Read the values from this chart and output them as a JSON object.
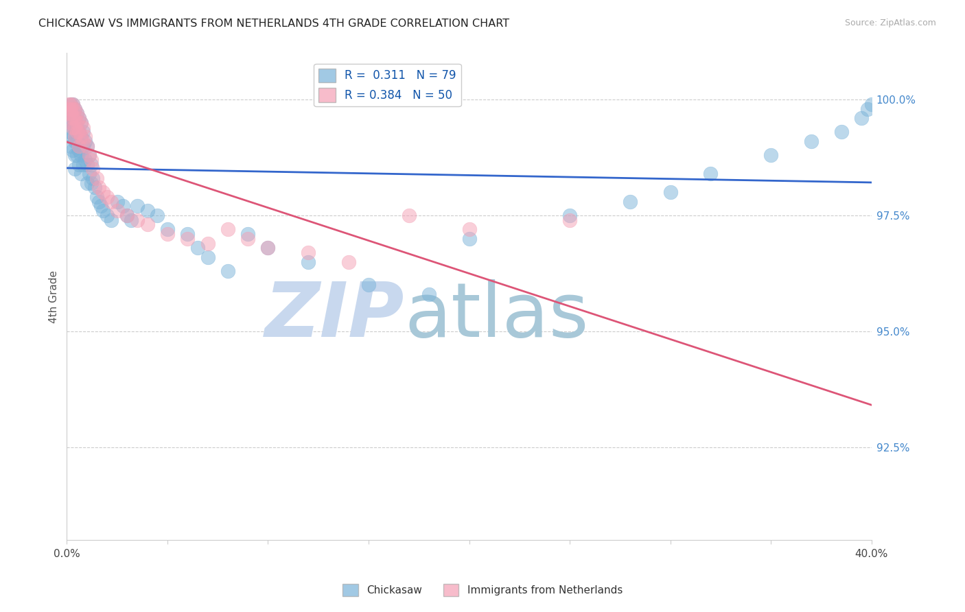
{
  "title": "CHICKASAW VS IMMIGRANTS FROM NETHERLANDS 4TH GRADE CORRELATION CHART",
  "source": "Source: ZipAtlas.com",
  "ylabel": "4th Grade",
  "ytick_labels": [
    "100.0%",
    "97.5%",
    "95.0%",
    "92.5%"
  ],
  "ytick_values": [
    1.0,
    0.975,
    0.95,
    0.925
  ],
  "xlim": [
    0.0,
    0.4
  ],
  "ylim": [
    0.905,
    1.01
  ],
  "blue_R": 0.311,
  "blue_N": 79,
  "pink_R": 0.384,
  "pink_N": 50,
  "blue_color": "#7ab3d9",
  "pink_color": "#f4a0b5",
  "blue_line_color": "#3366cc",
  "pink_line_color": "#dd5577",
  "legend_label_blue": "Chickasaw",
  "legend_label_pink": "Immigrants from Netherlands",
  "watermark_zip": "ZIP",
  "watermark_atlas": "atlas",
  "watermark_color_zip": "#c8d8ee",
  "watermark_color_atlas": "#a8c8d8",
  "blue_x": [
    0.001,
    0.001,
    0.001,
    0.002,
    0.002,
    0.002,
    0.002,
    0.002,
    0.003,
    0.003,
    0.003,
    0.003,
    0.003,
    0.004,
    0.004,
    0.004,
    0.004,
    0.004,
    0.004,
    0.005,
    0.005,
    0.005,
    0.005,
    0.006,
    0.006,
    0.006,
    0.006,
    0.007,
    0.007,
    0.007,
    0.007,
    0.008,
    0.008,
    0.008,
    0.009,
    0.009,
    0.01,
    0.01,
    0.01,
    0.011,
    0.011,
    0.012,
    0.012,
    0.013,
    0.014,
    0.015,
    0.016,
    0.017,
    0.018,
    0.02,
    0.022,
    0.025,
    0.028,
    0.03,
    0.032,
    0.035,
    0.04,
    0.045,
    0.05,
    0.06,
    0.065,
    0.07,
    0.08,
    0.09,
    0.1,
    0.12,
    0.15,
    0.18,
    0.2,
    0.25,
    0.28,
    0.3,
    0.32,
    0.35,
    0.37,
    0.385,
    0.395,
    0.398,
    0.4
  ],
  "blue_y": [
    0.998,
    0.996,
    0.993,
    0.999,
    0.997,
    0.995,
    0.993,
    0.99,
    0.999,
    0.997,
    0.995,
    0.992,
    0.989,
    0.998,
    0.996,
    0.994,
    0.991,
    0.988,
    0.985,
    0.997,
    0.994,
    0.991,
    0.988,
    0.996,
    0.993,
    0.989,
    0.986,
    0.995,
    0.992,
    0.988,
    0.984,
    0.993,
    0.99,
    0.986,
    0.991,
    0.987,
    0.99,
    0.986,
    0.982,
    0.988,
    0.984,
    0.986,
    0.982,
    0.983,
    0.981,
    0.979,
    0.978,
    0.977,
    0.976,
    0.975,
    0.974,
    0.978,
    0.977,
    0.975,
    0.974,
    0.977,
    0.976,
    0.975,
    0.972,
    0.971,
    0.968,
    0.966,
    0.963,
    0.971,
    0.968,
    0.965,
    0.96,
    0.958,
    0.97,
    0.975,
    0.978,
    0.98,
    0.984,
    0.988,
    0.991,
    0.993,
    0.996,
    0.998,
    0.999
  ],
  "pink_x": [
    0.001,
    0.001,
    0.001,
    0.002,
    0.002,
    0.002,
    0.002,
    0.003,
    0.003,
    0.003,
    0.003,
    0.004,
    0.004,
    0.004,
    0.004,
    0.005,
    0.005,
    0.005,
    0.006,
    0.006,
    0.006,
    0.007,
    0.007,
    0.008,
    0.008,
    0.009,
    0.01,
    0.011,
    0.012,
    0.013,
    0.015,
    0.016,
    0.018,
    0.02,
    0.022,
    0.025,
    0.03,
    0.035,
    0.04,
    0.05,
    0.06,
    0.07,
    0.08,
    0.09,
    0.1,
    0.12,
    0.14,
    0.17,
    0.2,
    0.25
  ],
  "pink_y": [
    0.999,
    0.998,
    0.997,
    0.999,
    0.998,
    0.997,
    0.995,
    0.999,
    0.998,
    0.996,
    0.994,
    0.998,
    0.996,
    0.994,
    0.992,
    0.997,
    0.995,
    0.993,
    0.996,
    0.993,
    0.99,
    0.995,
    0.992,
    0.994,
    0.991,
    0.992,
    0.99,
    0.988,
    0.987,
    0.985,
    0.983,
    0.981,
    0.98,
    0.979,
    0.978,
    0.976,
    0.975,
    0.974,
    0.973,
    0.971,
    0.97,
    0.969,
    0.972,
    0.97,
    0.968,
    0.967,
    0.965,
    0.975,
    0.972,
    0.974
  ]
}
